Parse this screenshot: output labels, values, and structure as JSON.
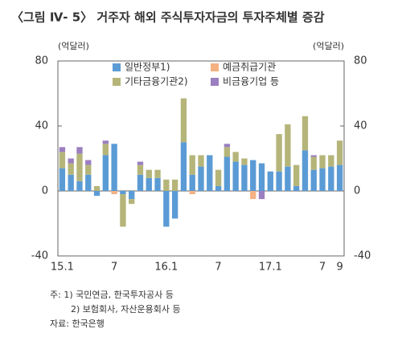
{
  "chart_data": {
    "type": "stacked_bar",
    "title": "〈그림 Ⅳ- 5〉 거주자 해외 주식투자자금의 투자주체별 증감",
    "y_label": "(억달러)",
    "y2_label": "(억달러)",
    "categories": [
      "15.1",
      null,
      null,
      null,
      null,
      null,
      "7",
      null,
      null,
      null,
      null,
      null,
      "16.1",
      null,
      null,
      null,
      null,
      null,
      "7",
      null,
      null,
      null,
      null,
      null,
      "17.1",
      null,
      null,
      null,
      null,
      null,
      "7",
      null,
      "9"
    ],
    "series": [
      {
        "name": "일반정부1)",
        "color": "#5b9bd5",
        "values": [
          14,
          10,
          6,
          10,
          -3,
          22,
          29,
          -2,
          -5,
          10,
          8,
          8,
          -22,
          -17,
          30,
          10,
          15,
          22,
          3,
          21,
          18,
          16,
          19,
          17,
          12,
          12,
          15,
          3,
          25,
          13,
          14,
          15,
          16
        ]
      },
      {
        "name": "예금취급기관",
        "color": "#f4b183",
        "values": [
          0,
          0,
          0,
          0,
          0,
          0,
          -2,
          0,
          0,
          0,
          0,
          0,
          0,
          0,
          0,
          -2,
          0,
          0,
          0,
          0,
          0,
          0,
          -5,
          0,
          0,
          0,
          0,
          0,
          0,
          0,
          0,
          0,
          0
        ]
      },
      {
        "name": "기타금융기관2)",
        "color": "#b5b57a",
        "values": [
          10,
          7,
          17,
          6,
          3,
          7,
          0,
          -20,
          -3,
          6,
          5,
          5,
          7,
          7,
          27,
          12,
          7,
          0,
          10,
          6,
          6,
          4,
          0,
          0,
          0,
          23,
          26,
          13,
          21,
          8,
          8,
          7,
          15
        ]
      },
      {
        "name": "비금융기업 등",
        "color": "#9b7fc0",
        "values": [
          3,
          3,
          4,
          3,
          0,
          2,
          0,
          0,
          0,
          2,
          0,
          0,
          0,
          0,
          0,
          0,
          0,
          0,
          0,
          2,
          0,
          0,
          0,
          -5,
          0,
          0,
          0,
          0,
          0,
          1,
          0,
          0,
          0
        ]
      }
    ],
    "ylim": [
      -40,
      80
    ],
    "yticks": [
      -40,
      0,
      40,
      80
    ],
    "y2lim": [
      -40,
      80
    ],
    "y2ticks": [
      -40,
      0,
      40,
      80
    ],
    "notes": [
      "주: 1) 국민연금, 한국투자공사 등",
      "2) 보험회사, 자산운용회사 등",
      "자료: 한국은행"
    ]
  }
}
